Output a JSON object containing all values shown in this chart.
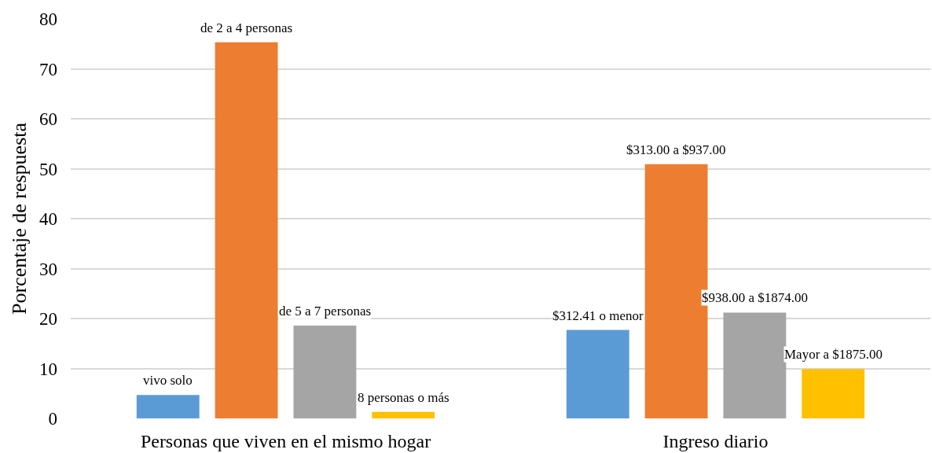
{
  "chart_data": {
    "type": "bar",
    "categories": [
      "Personas que viven en el mismo hogar",
      "Ingreso diario"
    ],
    "series": [
      {
        "color": "#5b9bd5",
        "values": [
          4.7,
          17.7
        ]
      },
      {
        "color": "#ed7d31",
        "values": [
          75.3,
          50.9
        ]
      },
      {
        "color": "#a5a5a5",
        "values": [
          18.6,
          21.2
        ]
      },
      {
        "color": "#ffc000",
        "values": [
          1.3,
          9.9
        ]
      }
    ],
    "annotations": [
      "vivo solo",
      "de 2 a 4 personas",
      "de 5 a 7 personas",
      "8 personas o más",
      "$312.41 o menor",
      "$313.00 a $937.00",
      "$938.00 a $1874.00",
      "Mayor a $1875.00"
    ],
    "ylabel": "Porcentaje de respuesta",
    "ylim": [
      0,
      80
    ],
    "yticks": [
      0,
      10,
      20,
      30,
      40,
      50,
      60,
      70,
      80
    ],
    "grid": "y"
  }
}
